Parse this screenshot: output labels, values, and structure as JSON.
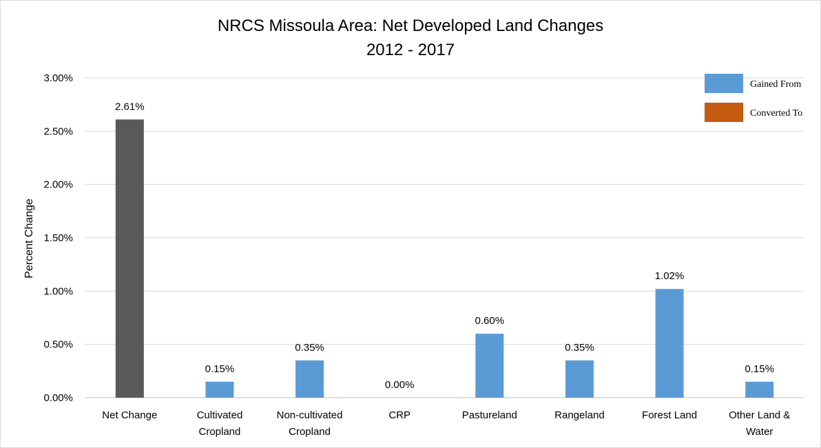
{
  "chart_data": {
    "type": "bar",
    "title": "NRCS Missoula Area: Net Developed Land Changes",
    "subtitle": "2012 - 2017",
    "xlabel": "",
    "ylabel": "Percent Change",
    "ylim": [
      0,
      3.0
    ],
    "yticks": [
      0,
      0.5,
      1.0,
      1.5,
      2.0,
      2.5,
      3.0
    ],
    "ytick_labels": [
      "0.00%",
      "0.50%",
      "1.00%",
      "1.50%",
      "2.00%",
      "2.50%",
      "3.00%"
    ],
    "grid": "horizontal",
    "legend_position": "top-right",
    "categories": [
      [
        "Net Change"
      ],
      [
        "Cultivated",
        "Cropland"
      ],
      [
        "Non-cultivated",
        "Cropland"
      ],
      [
        "CRP"
      ],
      [
        "Pastureland"
      ],
      [
        "Rangeland"
      ],
      [
        "Forest Land"
      ],
      [
        "Other Land &",
        "Water"
      ]
    ],
    "values": [
      2.61,
      0.15,
      0.35,
      0.0,
      0.6,
      0.35,
      1.02,
      0.15
    ],
    "data_labels": [
      "2.61%",
      "0.15%",
      "0.35%",
      "0.00%",
      "0.60%",
      "0.35%",
      "1.02%",
      "0.15%"
    ],
    "bar_colors": [
      "#595959",
      "#5b9bd5",
      "#5b9bd5",
      "#5b9bd5",
      "#5b9bd5",
      "#5b9bd5",
      "#5b9bd5",
      "#5b9bd5"
    ],
    "legend": [
      {
        "label": "Gained From",
        "color": "#5b9bd5"
      },
      {
        "label": "Converted To",
        "color": "#c55a11"
      }
    ]
  },
  "colors": {
    "gridline": "#d9d9d9",
    "axis": "#bfbfbf"
  }
}
